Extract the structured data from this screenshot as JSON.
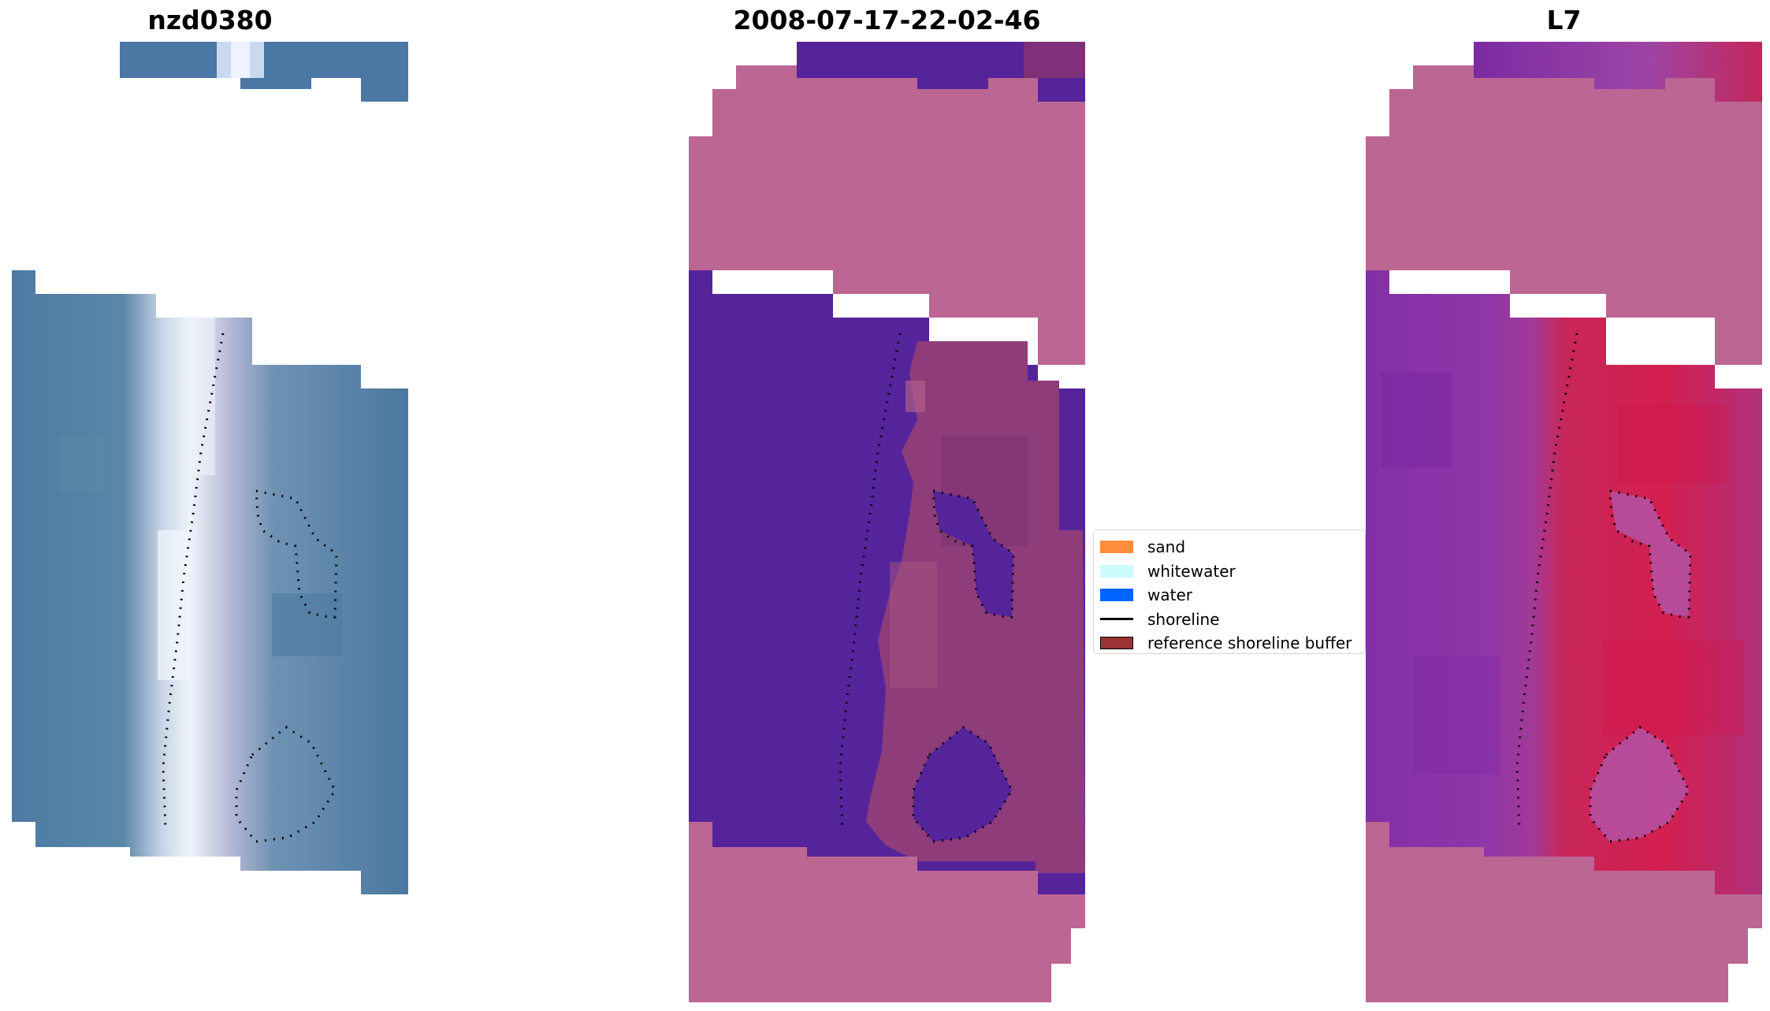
{
  "panels": [
    {
      "id": "rgb",
      "title": "nzd0380"
    },
    {
      "id": "classified",
      "title": "2008-07-17-22-02-46"
    },
    {
      "id": "index",
      "title": "L7"
    }
  ],
  "legend": {
    "items": [
      {
        "label": "sand",
        "color": "#ff8c3a",
        "kind": "patch"
      },
      {
        "label": "whitewater",
        "color": "#ccfcfc",
        "kind": "patch"
      },
      {
        "label": "water",
        "color": "#0064ff",
        "kind": "patch"
      },
      {
        "label": "shoreline",
        "color": "#000000",
        "kind": "line"
      },
      {
        "label": "reference shoreline buffer",
        "color": "#9b3535",
        "kind": "edged-patch"
      }
    ]
  },
  "colors": {
    "rgb_water": "#4d7aa3",
    "rgb_surf": "#e6eef8",
    "mask": "#bb6693",
    "class_water": "#55249a",
    "class_land": "#8e3d7a",
    "index_low": "#8b2fa8",
    "index_high": "#d42050"
  }
}
